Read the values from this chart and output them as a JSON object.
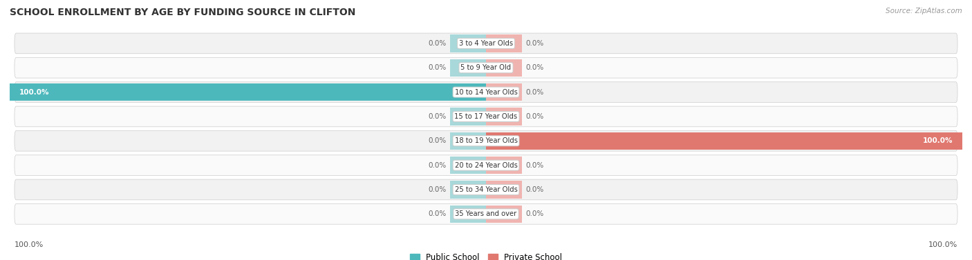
{
  "title": "SCHOOL ENROLLMENT BY AGE BY FUNDING SOURCE IN CLIFTON",
  "source": "Source: ZipAtlas.com",
  "categories": [
    "3 to 4 Year Olds",
    "5 to 9 Year Old",
    "10 to 14 Year Olds",
    "15 to 17 Year Olds",
    "18 to 19 Year Olds",
    "20 to 24 Year Olds",
    "25 to 34 Year Olds",
    "35 Years and over"
  ],
  "public_values": [
    0.0,
    0.0,
    100.0,
    0.0,
    0.0,
    0.0,
    0.0,
    0.0
  ],
  "private_values": [
    0.0,
    0.0,
    0.0,
    0.0,
    100.0,
    0.0,
    0.0,
    0.0
  ],
  "public_color": "#4db8bc",
  "private_color": "#e07870",
  "public_color_light": "#a8d8da",
  "private_color_light": "#f0b4b0",
  "row_color_odd": "#f2f2f2",
  "row_color_even": "#fafafa",
  "label_color": "#333333",
  "title_color": "#333333",
  "value_label_color_on_bar": "#ffffff",
  "value_label_color_off": "#666666",
  "xlim_left": -100,
  "xlim_right": 100,
  "legend_public": "Public School",
  "legend_private": "Private School",
  "bottom_left_label": "100.0%",
  "bottom_right_label": "100.0%",
  "small_stub": 7.5
}
